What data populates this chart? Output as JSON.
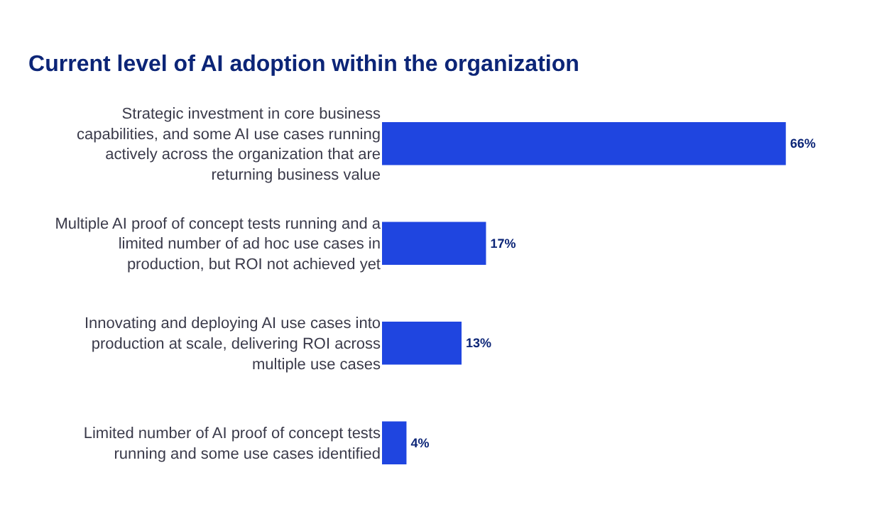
{
  "chart_data": {
    "type": "bar",
    "orientation": "horizontal",
    "title": "Current level of AI adoption within the organization",
    "categories": [
      "Strategic investment in core business capabilities, and some AI use cases running actively across the organization that are returning business value",
      "Multiple AI proof of concept tests running and a limited number of ad hoc use cases in production, but ROI not achieved yet",
      "Innovating and deploying AI use cases into production at scale, delivering ROI across multiple use cases",
      "Limited number of AI proof of concept tests running and some use cases identified"
    ],
    "values": [
      66,
      17,
      13,
      4
    ],
    "value_labels": [
      "66%",
      "17%",
      "13%",
      "4%"
    ],
    "color": "#1f45e0",
    "grid": false,
    "legend": false
  }
}
